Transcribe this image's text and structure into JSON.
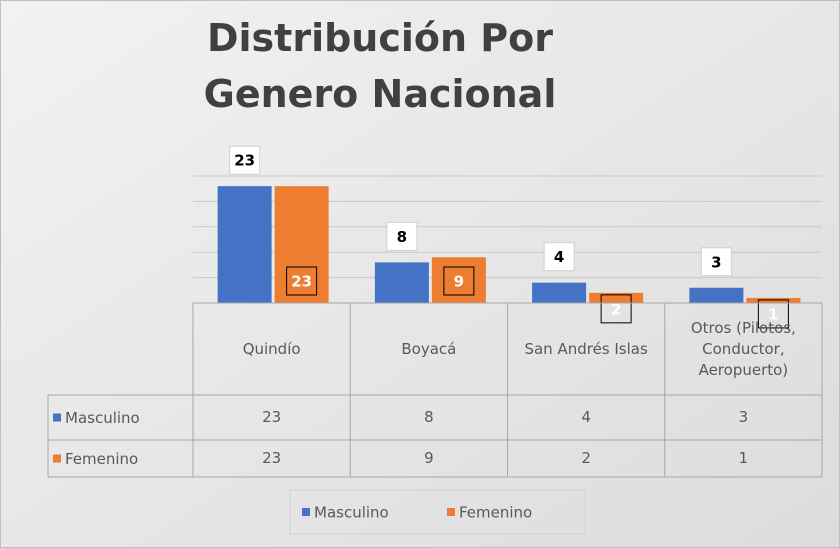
{
  "chart_data": {
    "type": "bar",
    "title": "Distribución Por Genero Nacional",
    "categories": [
      "Quindío",
      "Boyacá",
      "San Andrés Islas",
      "Otros (Pilotos, Conductor, Aeropuerto)"
    ],
    "series": [
      {
        "name": "Masculino",
        "color": "#4472c4",
        "values": [
          23,
          8,
          4,
          3
        ]
      },
      {
        "name": "Femenino",
        "color": "#ed7d31",
        "values": [
          23,
          9,
          2,
          1
        ]
      }
    ],
    "ylim": [
      0,
      25
    ],
    "yticks": [
      0,
      5,
      10,
      15,
      20,
      25
    ],
    "grid": true,
    "legend": "bottom"
  }
}
